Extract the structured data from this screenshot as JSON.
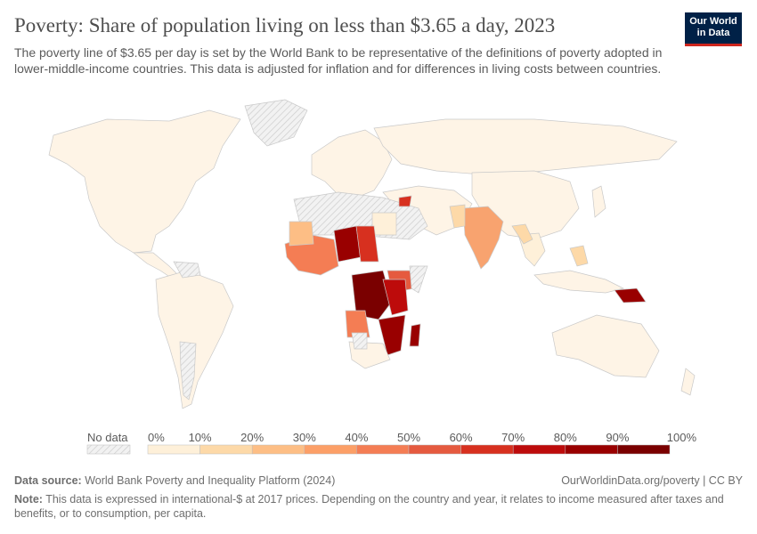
{
  "header": {
    "title": "Poverty: Share of population living on less than $3.65 a day, 2023",
    "subtitle": "The poverty line of $3.65 per day is set by the World Bank to be representative of the definitions of poverty adopted in lower-middle-income countries. This data is adjusted for inflation and for differences in living costs between countries.",
    "logo_line1": "Our World",
    "logo_line2": "in Data"
  },
  "legend": {
    "no_data_label": "No data",
    "bins": [
      "0%",
      "10%",
      "20%",
      "30%",
      "40%",
      "50%",
      "60%",
      "70%",
      "80%",
      "90%",
      "100%"
    ],
    "colors": [
      "#fef0d9",
      "#fdd9a8",
      "#fdbe85",
      "#fc9f67",
      "#f47d54",
      "#e55a3f",
      "#d7301f",
      "#bd0b0b",
      "#990000",
      "#7a0000"
    ],
    "no_data_color": "#e8e8e8"
  },
  "map_colors": {
    "ocean": "#ffffff",
    "border": "#bdbdbd",
    "no_data": "#e8e8e8"
  },
  "footer": {
    "source_label": "Data source:",
    "source_text": "World Bank Poverty and Inequality Platform (2024)",
    "link_text": "OurWorldinData.org/poverty | CC BY",
    "note_label": "Note:",
    "note_text": "This data is expressed in international-$ at 2017 prices. Depending on the country and year, it relates to income measured after taxes and benefits, or to consumption, per capita."
  }
}
